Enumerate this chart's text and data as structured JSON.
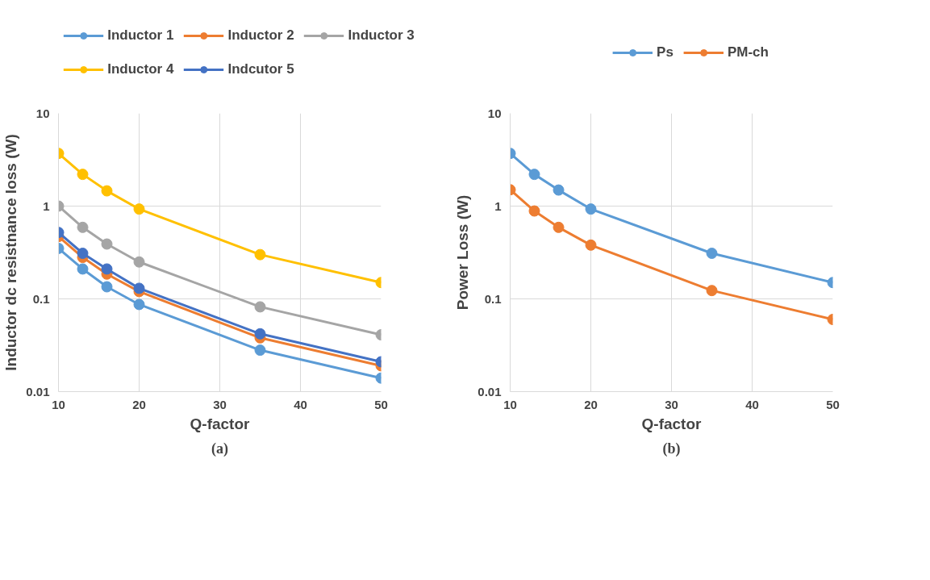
{
  "chart_data": [
    {
      "type": "line",
      "xlabel": "Q-factor",
      "ylabel": "Inductor dc resistnance loss (W)",
      "annotations": [
        "(a)"
      ],
      "x": [
        10,
        13,
        16,
        20,
        35,
        50
      ],
      "xlim": [
        10,
        50
      ],
      "xticks": [
        10,
        20,
        30,
        40,
        50
      ],
      "ylim": [
        0.01,
        10
      ],
      "yticks": [
        0.01,
        0.1,
        1,
        10
      ],
      "log": "y",
      "grid": true,
      "legend": "top",
      "marker": "circle",
      "line_style": "solid",
      "series": [
        {
          "name": "Inductor 1",
          "color": "#5b9bd5",
          "values": [
            0.35,
            0.21,
            0.135,
            0.087,
            0.028,
            0.014
          ]
        },
        {
          "name": "Inductor 2",
          "color": "#ed7d31",
          "values": [
            0.47,
            0.28,
            0.185,
            0.12,
            0.038,
            0.019
          ]
        },
        {
          "name": "Inductor 3",
          "color": "#a5a5a5",
          "values": [
            1.0,
            0.59,
            0.39,
            0.25,
            0.082,
            0.041
          ]
        },
        {
          "name": "Inductor 4",
          "color": "#ffc000",
          "values": [
            3.7,
            2.2,
            1.46,
            0.93,
            0.3,
            0.15
          ]
        },
        {
          "name": "Indcutor 5",
          "color": "#4472c4",
          "values": [
            0.52,
            0.31,
            0.21,
            0.13,
            0.042,
            0.021
          ]
        }
      ]
    },
    {
      "type": "line",
      "xlabel": "Q-factor",
      "ylabel": "Power Loss (W)",
      "annotations": [
        "(b)"
      ],
      "x": [
        10,
        13,
        16,
        20,
        35,
        50
      ],
      "xlim": [
        10,
        50
      ],
      "xticks": [
        10,
        20,
        30,
        40,
        50
      ],
      "ylim": [
        0.01,
        10
      ],
      "yticks": [
        0.01,
        0.1,
        1,
        10
      ],
      "log": "y",
      "grid": true,
      "legend": "top",
      "marker": "circle",
      "line_style": "solid",
      "series": [
        {
          "name": "Ps",
          "color": "#5b9bd5",
          "values": [
            3.7,
            2.2,
            1.49,
            0.93,
            0.31,
            0.15
          ]
        },
        {
          "name": "PM-ch",
          "color": "#ed7d31",
          "values": [
            1.5,
            0.886,
            0.59,
            0.38,
            0.123,
            0.06
          ]
        }
      ]
    }
  ]
}
